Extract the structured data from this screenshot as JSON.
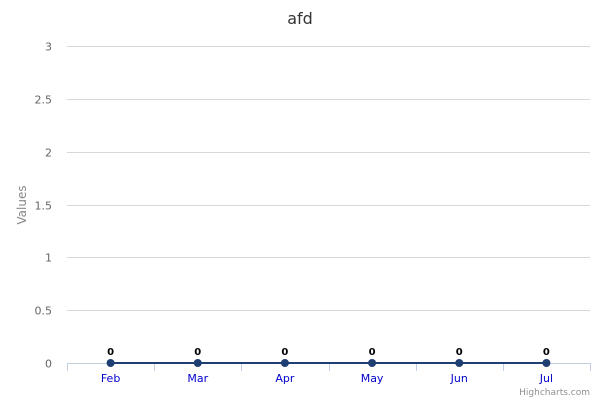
{
  "chart_data": {
    "type": "line",
    "title": "afd",
    "xlabel": "",
    "ylabel": "Values",
    "categories": [
      "Feb",
      "Mar",
      "Apr",
      "May",
      "Jun",
      "Jul"
    ],
    "series": [
      {
        "values": [
          0,
          0,
          0,
          0,
          0,
          0
        ],
        "color": "#1f3f73"
      }
    ],
    "ylim": [
      0,
      3
    ],
    "yticks": [
      "0",
      "0.5",
      "1",
      "1.5",
      "2",
      "2.5",
      "3"
    ],
    "data_labels": true,
    "grid": true,
    "legend": "none"
  },
  "credits": "Highcharts.com",
  "colors": {
    "gridline": "#d8d8d8",
    "axis": "#c0d0e0",
    "xtick_text": "#0000cc",
    "series": "#1f3f73"
  }
}
